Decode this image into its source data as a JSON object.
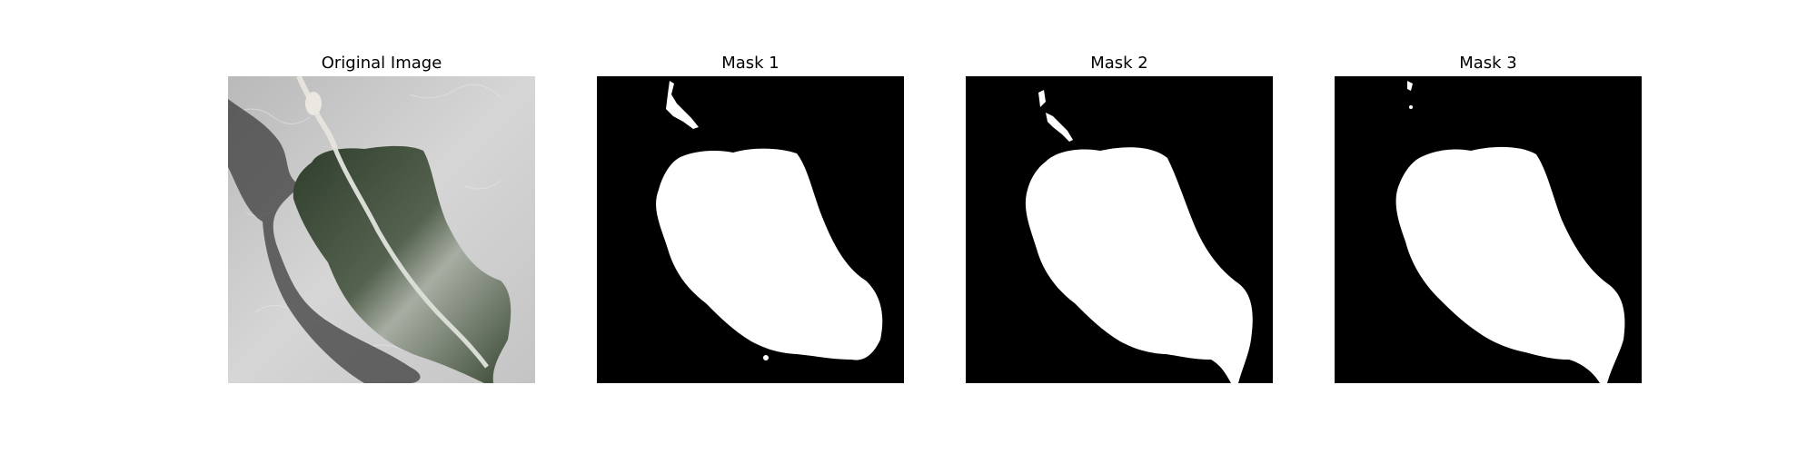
{
  "figure": {
    "panels": [
      {
        "title": "Original Image",
        "kind": "photo"
      },
      {
        "title": "Mask 1",
        "kind": "mask"
      },
      {
        "title": "Mask 2",
        "kind": "mask"
      },
      {
        "title": "Mask 3",
        "kind": "mask"
      }
    ],
    "colors": {
      "mask_background": "#000000",
      "mask_foreground": "#ffffff",
      "photo_background": "#c8c8c8",
      "leaf": "#3d4a38"
    }
  }
}
